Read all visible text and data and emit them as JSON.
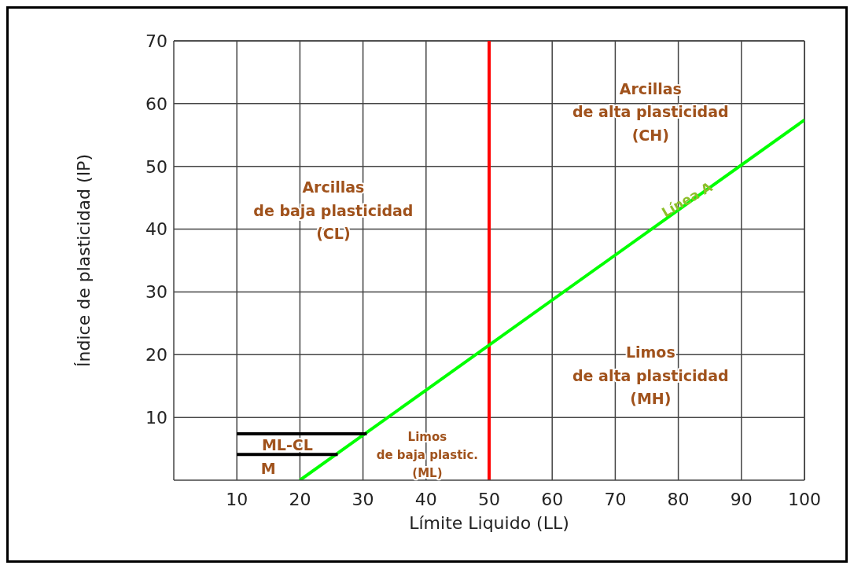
{
  "chart_data": {
    "type": "line",
    "xlabel": "Límite Liquido (LL)",
    "ylabel": "Índice de plasticidad (IP)",
    "xlim": [
      0,
      100
    ],
    "xticks": [
      10,
      20,
      30,
      40,
      50,
      60,
      70,
      80,
      90,
      100
    ],
    "ylim": [
      0,
      70
    ],
    "yticks": [
      10,
      20,
      30,
      40,
      50,
      60,
      70
    ],
    "grid": true,
    "marker": "none",
    "line_style": "solid",
    "series": [
      {
        "name": "Línea A",
        "color": "#00ff00",
        "x": [
          20,
          100
        ],
        "values": [
          0,
          57.4
        ]
      },
      {
        "color": "#000000",
        "x": [
          10,
          30.6
        ],
        "values": [
          7.4,
          7.4
        ]
      },
      {
        "color": "#000000",
        "x": [
          10,
          26
        ],
        "values": [
          4.1,
          4.1
        ]
      }
    ],
    "ref_lines": [
      {
        "axis": "x",
        "value": 50,
        "color": "#ff0000"
      }
    ],
    "annotations": [
      "Arcillas\nde baja plasticidad\n(CL)",
      "Arcillas\nde alta plasticidad\n(CH)",
      "Limos\nde alta plasticidad\n(MH)",
      "Limos\nde baja plastic.\n(ML)",
      "ML-CL",
      "M"
    ]
  }
}
